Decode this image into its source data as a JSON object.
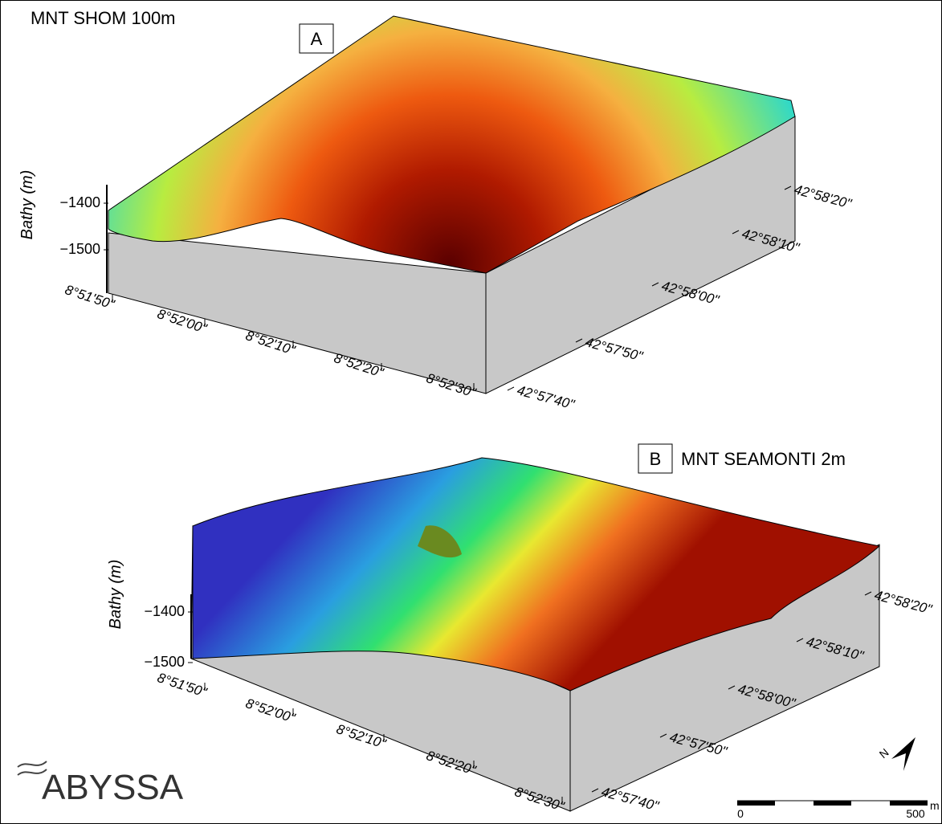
{
  "panel_a": {
    "title": "MNT SHOM 100m",
    "letter": "A",
    "axis_label": "Bathy (m)",
    "depth_ticks": [
      "−1400",
      "−1500"
    ],
    "lon_ticks": [
      "8°51'50\"",
      "8°52'00\"",
      "8°52'10\"",
      "8°52'20\"",
      "8°52'30\""
    ],
    "lat_ticks": [
      "42°58'20\"",
      "42°58'10\"",
      "42°58'00\"",
      "42°57'50\"",
      "42°57'40\""
    ]
  },
  "panel_b": {
    "title": "MNT SEAMONTI 2m",
    "letter": "B",
    "axis_label": "Bathy (m)",
    "depth_ticks": [
      "−1400",
      "−1500"
    ],
    "lon_ticks": [
      "8°51'50\"",
      "8°52'00\"",
      "8°52'10\"",
      "8°52'20\"",
      "8°52'30\""
    ],
    "lat_ticks": [
      "42°58'20\"",
      "42°58'10\"",
      "42°58'00\"",
      "42°57'50\"",
      "42°57'40\""
    ]
  },
  "logo": "ABYSSA",
  "north": "N",
  "scale": {
    "start": "0",
    "end": "500",
    "unit": "m"
  }
}
